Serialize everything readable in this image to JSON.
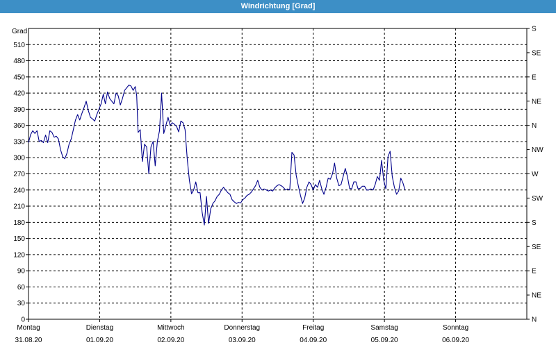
{
  "window": {
    "title": "Windrichtung [Grad]"
  },
  "chart_data": {
    "type": "line",
    "title": "Windrichtung [Grad]",
    "ylabel": "Grad",
    "ylim": [
      0,
      540
    ],
    "y_ticks": [
      0,
      30,
      60,
      90,
      120,
      150,
      180,
      210,
      240,
      270,
      300,
      330,
      360,
      390,
      420,
      450,
      480,
      510
    ],
    "right_ticks": [
      {
        "value": 0,
        "label": "N"
      },
      {
        "value": 45,
        "label": "NE"
      },
      {
        "value": 90,
        "label": "E"
      },
      {
        "value": 135,
        "label": "SE"
      },
      {
        "value": 180,
        "label": "S"
      },
      {
        "value": 225,
        "label": "SW"
      },
      {
        "value": 270,
        "label": "W"
      },
      {
        "value": 315,
        "label": "NW"
      },
      {
        "value": 360,
        "label": "N"
      },
      {
        "value": 405,
        "label": "NE"
      },
      {
        "value": 450,
        "label": "E"
      },
      {
        "value": 495,
        "label": "SE"
      },
      {
        "value": 540,
        "label": "S"
      }
    ],
    "xlim": [
      0,
      7
    ],
    "x_unit": "days since Montag 31.08.20",
    "x_ticks": [
      {
        "value": 0,
        "day": "Montag",
        "date": "31.08.20"
      },
      {
        "value": 1,
        "day": "Dienstag",
        "date": "01.09.20"
      },
      {
        "value": 2,
        "day": "Mittwoch",
        "date": "02.09.20"
      },
      {
        "value": 3,
        "day": "Donnerstag",
        "date": "03.09.20"
      },
      {
        "value": 4,
        "day": "Freitag",
        "date": "04.09.20"
      },
      {
        "value": 5,
        "day": "Samstag",
        "date": "05.09.20"
      },
      {
        "value": 6,
        "day": "Sonntag",
        "date": "06.09.20"
      }
    ],
    "grid": true,
    "colors": {
      "line": "#00008b",
      "grid": "#000000",
      "title_bar": "#3d8fc6"
    },
    "series": [
      {
        "name": "Windrichtung",
        "points": [
          [
            0.0,
            328
          ],
          [
            0.03,
            343
          ],
          [
            0.06,
            350
          ],
          [
            0.09,
            345
          ],
          [
            0.12,
            350
          ],
          [
            0.15,
            330
          ],
          [
            0.18,
            332
          ],
          [
            0.21,
            328
          ],
          [
            0.24,
            342
          ],
          [
            0.27,
            328
          ],
          [
            0.3,
            350
          ],
          [
            0.33,
            347
          ],
          [
            0.36,
            338
          ],
          [
            0.39,
            340
          ],
          [
            0.42,
            335
          ],
          [
            0.45,
            315
          ],
          [
            0.48,
            302
          ],
          [
            0.51,
            298
          ],
          [
            0.54,
            308
          ],
          [
            0.57,
            325
          ],
          [
            0.6,
            335
          ],
          [
            0.63,
            352
          ],
          [
            0.66,
            370
          ],
          [
            0.69,
            380
          ],
          [
            0.72,
            370
          ],
          [
            0.75,
            382
          ],
          [
            0.78,
            393
          ],
          [
            0.81,
            405
          ],
          [
            0.84,
            388
          ],
          [
            0.87,
            375
          ],
          [
            0.9,
            372
          ],
          [
            0.93,
            368
          ],
          [
            0.96,
            380
          ],
          [
            0.99,
            390
          ],
          [
            1.02,
            400
          ],
          [
            1.05,
            418
          ],
          [
            1.08,
            400
          ],
          [
            1.11,
            422
          ],
          [
            1.14,
            410
          ],
          [
            1.17,
            405
          ],
          [
            1.2,
            400
          ],
          [
            1.23,
            420
          ],
          [
            1.26,
            415
          ],
          [
            1.29,
            398
          ],
          [
            1.32,
            410
          ],
          [
            1.35,
            425
          ],
          [
            1.38,
            430
          ],
          [
            1.41,
            435
          ],
          [
            1.44,
            433
          ],
          [
            1.47,
            425
          ],
          [
            1.5,
            432
          ],
          [
            1.52,
            415
          ],
          [
            1.54,
            347
          ],
          [
            1.57,
            352
          ],
          [
            1.6,
            293
          ],
          [
            1.63,
            325
          ],
          [
            1.66,
            320
          ],
          [
            1.69,
            270
          ],
          [
            1.72,
            320
          ],
          [
            1.75,
            330
          ],
          [
            1.78,
            285
          ],
          [
            1.81,
            330
          ],
          [
            1.84,
            350
          ],
          [
            1.87,
            420
          ],
          [
            1.9,
            345
          ],
          [
            1.93,
            360
          ],
          [
            1.96,
            375
          ],
          [
            1.99,
            360
          ],
          [
            2.02,
            365
          ],
          [
            2.05,
            362
          ],
          [
            2.08,
            358
          ],
          [
            2.11,
            348
          ],
          [
            2.14,
            368
          ],
          [
            2.17,
            365
          ],
          [
            2.2,
            352
          ],
          [
            2.23,
            298
          ],
          [
            2.26,
            258
          ],
          [
            2.29,
            233
          ],
          [
            2.32,
            240
          ],
          [
            2.35,
            255
          ],
          [
            2.38,
            235
          ],
          [
            2.41,
            235
          ],
          [
            2.44,
            198
          ],
          [
            2.47,
            175
          ],
          [
            2.5,
            228
          ],
          [
            2.53,
            178
          ],
          [
            2.56,
            205
          ],
          [
            2.59,
            215
          ],
          [
            2.62,
            220
          ],
          [
            2.65,
            228
          ],
          [
            2.68,
            232
          ],
          [
            2.71,
            240
          ],
          [
            2.74,
            245
          ],
          [
            2.77,
            240
          ],
          [
            2.8,
            235
          ],
          [
            2.83,
            232
          ],
          [
            2.86,
            222
          ],
          [
            2.89,
            218
          ],
          [
            2.92,
            215
          ],
          [
            2.95,
            217
          ],
          [
            2.98,
            216
          ],
          [
            3.01,
            222
          ],
          [
            3.04,
            225
          ],
          [
            3.07,
            230
          ],
          [
            3.1,
            232
          ],
          [
            3.13,
            236
          ],
          [
            3.16,
            242
          ],
          [
            3.19,
            248
          ],
          [
            3.22,
            258
          ],
          [
            3.25,
            245
          ],
          [
            3.28,
            240
          ],
          [
            3.31,
            242
          ],
          [
            3.34,
            240
          ],
          [
            3.37,
            238
          ],
          [
            3.4,
            240
          ],
          [
            3.43,
            238
          ],
          [
            3.46,
            244
          ],
          [
            3.49,
            248
          ],
          [
            3.52,
            250
          ],
          [
            3.55,
            248
          ],
          [
            3.58,
            245
          ],
          [
            3.61,
            240
          ],
          [
            3.64,
            242
          ],
          [
            3.67,
            240
          ],
          [
            3.7,
            310
          ],
          [
            3.73,
            305
          ],
          [
            3.76,
            268
          ],
          [
            3.79,
            248
          ],
          [
            3.82,
            230
          ],
          [
            3.85,
            215
          ],
          [
            3.88,
            225
          ],
          [
            3.91,
            245
          ],
          [
            3.94,
            255
          ],
          [
            3.97,
            250
          ],
          [
            4.0,
            240
          ],
          [
            4.03,
            250
          ],
          [
            4.06,
            245
          ],
          [
            4.09,
            258
          ],
          [
            4.12,
            242
          ],
          [
            4.15,
            232
          ],
          [
            4.18,
            245
          ],
          [
            4.21,
            262
          ],
          [
            4.24,
            260
          ],
          [
            4.27,
            270
          ],
          [
            4.3,
            290
          ],
          [
            4.33,
            262
          ],
          [
            4.36,
            248
          ],
          [
            4.39,
            250
          ],
          [
            4.42,
            265
          ],
          [
            4.45,
            280
          ],
          [
            4.48,
            265
          ],
          [
            4.51,
            243
          ],
          [
            4.54,
            242
          ],
          [
            4.57,
            255
          ],
          [
            4.6,
            255
          ],
          [
            4.63,
            242
          ],
          [
            4.66,
            243
          ],
          [
            4.69,
            247
          ],
          [
            4.72,
            247
          ],
          [
            4.75,
            240
          ],
          [
            4.78,
            240
          ],
          [
            4.81,
            242
          ],
          [
            4.84,
            240
          ],
          [
            4.87,
            250
          ],
          [
            4.9,
            265
          ],
          [
            4.93,
            258
          ],
          [
            4.96,
            295
          ],
          [
            4.99,
            258
          ],
          [
            5.02,
            242
          ],
          [
            5.05,
            302
          ],
          [
            5.08,
            312
          ],
          [
            5.11,
            265
          ],
          [
            5.14,
            245
          ],
          [
            5.17,
            232
          ],
          [
            5.2,
            238
          ],
          [
            5.23,
            262
          ],
          [
            5.26,
            253
          ],
          [
            5.29,
            240
          ]
        ]
      }
    ]
  }
}
